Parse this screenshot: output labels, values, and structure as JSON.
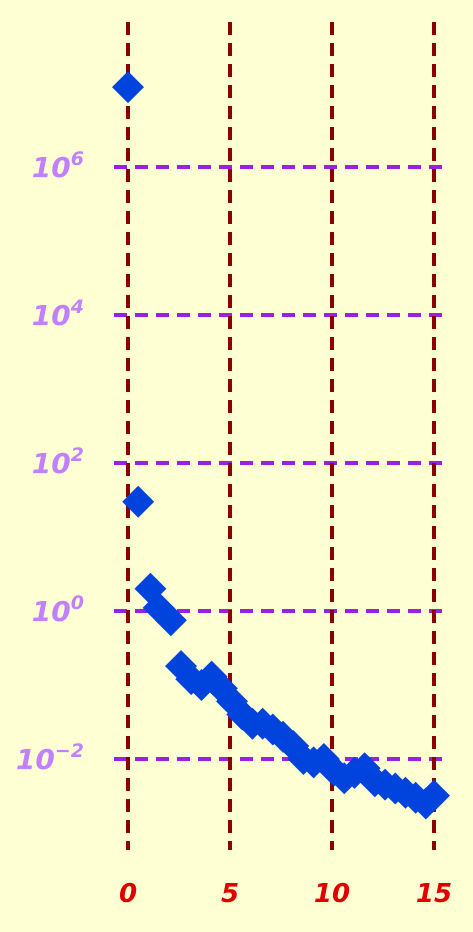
{
  "chart_data": {
    "type": "scatter",
    "title": "",
    "xlabel": "",
    "ylabel": "",
    "x_scale": "linear",
    "y_scale": "log",
    "xlim": [
      0,
      15
    ],
    "x_ticks": [
      "0",
      "5",
      "10",
      "15"
    ],
    "y_ticks": [
      {
        "base": "10",
        "exp": "−2"
      },
      {
        "base": "10",
        "exp": "0"
      },
      {
        "base": "10",
        "exp": "2"
      },
      {
        "base": "10",
        "exp": "4"
      },
      {
        "base": "10",
        "exp": "6"
      }
    ],
    "grid": true,
    "legend": "none",
    "colors": {
      "background": "#ffffd4",
      "marker": "#0044dd",
      "x_grid": "#8b0000",
      "y_grid": "#9b1fe8",
      "x_tick_labels": "#e00000",
      "y_tick_labels": "#c080ff"
    },
    "marker": "diamond",
    "series": [
      {
        "x": [
          0,
          0.5,
          1.1,
          1.5,
          2.1,
          2.6,
          3.1,
          3.6,
          4.1,
          4.6,
          5.1,
          5.6,
          6.1,
          6.6,
          7.1,
          7.6,
          8.1,
          8.6,
          9.1,
          9.6,
          10.1,
          10.6,
          11.1,
          11.6,
          12.1,
          12.6,
          13.1,
          13.6,
          14.1,
          14.6,
          15.0
        ],
        "y": [
          12000000,
          30,
          2,
          1.1,
          0.75,
          0.18,
          0.12,
          0.1,
          0.13,
          0.09,
          0.06,
          0.04,
          0.03,
          0.03,
          0.025,
          0.02,
          0.015,
          0.01,
          0.009,
          0.01,
          0.007,
          0.0055,
          0.0065,
          0.0075,
          0.005,
          0.0045,
          0.004,
          0.0035,
          0.003,
          0.0025,
          0.0032
        ]
      }
    ]
  }
}
